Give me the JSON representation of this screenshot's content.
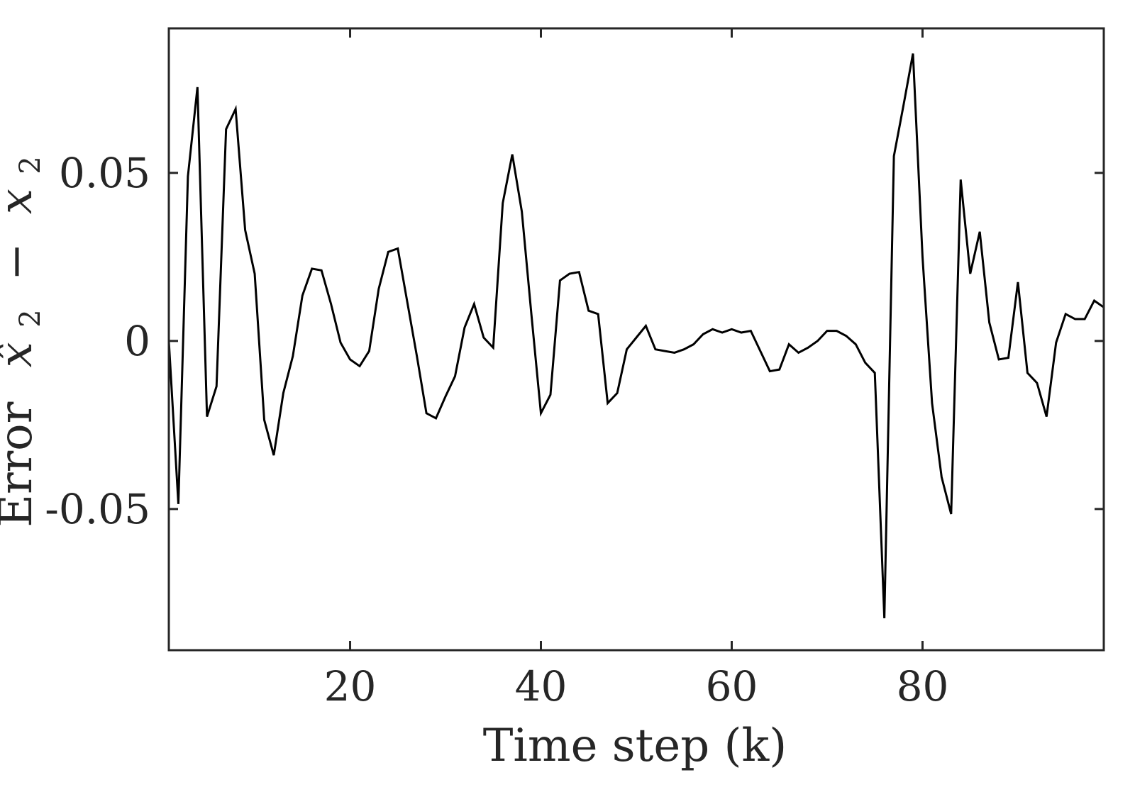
{
  "chart_data": {
    "type": "line",
    "xlabel": "Time step (k)",
    "ylabel": {
      "word": "Error",
      "math_a": "x̂",
      "sub_a": "2",
      "op": "−",
      "math_b": "x",
      "sub_b": "2"
    },
    "xlim": [
      1,
      99
    ],
    "ylim": [
      -0.092,
      0.093
    ],
    "xticks": [
      20,
      40,
      60,
      80
    ],
    "xtick_labels": [
      "20",
      "40",
      "60",
      "80"
    ],
    "yticks": [
      0.05,
      0,
      -0.05
    ],
    "ytick_labels": [
      "0.05",
      "0",
      "-0.05"
    ],
    "grid": false,
    "line_color": "#000000",
    "axis_color": "#262626",
    "series": [
      {
        "x": [
          1,
          2,
          3,
          4,
          5,
          6,
          7,
          8,
          9,
          10,
          11,
          12,
          13,
          14,
          15,
          16,
          17,
          18,
          19,
          20,
          21,
          22,
          23,
          24,
          25,
          26,
          27,
          28,
          29,
          30,
          31,
          32,
          33,
          34,
          35,
          36,
          37,
          38,
          39,
          40,
          41,
          42,
          43,
          44,
          45,
          46,
          47,
          48,
          49,
          50,
          51,
          52,
          53,
          54,
          55,
          56,
          57,
          58,
          59,
          60,
          61,
          62,
          63,
          64,
          65,
          66,
          67,
          68,
          69,
          70,
          71,
          72,
          73,
          74,
          75,
          76,
          77,
          78,
          79,
          80,
          81,
          82,
          83,
          84,
          85,
          86,
          87,
          88,
          89,
          90,
          91,
          92,
          93,
          94,
          95,
          96,
          97,
          98,
          99
        ],
        "y": [
          0,
          -0.0485,
          0.049,
          0.0755,
          -0.0225,
          -0.0135,
          0.063,
          0.069,
          0.033,
          0.02,
          -0.0235,
          -0.034,
          -0.0155,
          -0.0045,
          0.0135,
          0.0215,
          0.021,
          0.011,
          -0.0005,
          -0.0055,
          -0.0075,
          -0.003,
          0.0155,
          0.0265,
          0.0275,
          0.0115,
          -0.0045,
          -0.0215,
          -0.023,
          -0.0165,
          -0.0105,
          0.004,
          0.011,
          0.001,
          -0.002,
          0.041,
          0.0555,
          0.0385,
          0.008,
          -0.0215,
          -0.016,
          0.018,
          0.02,
          0.0205,
          0.009,
          0.008,
          -0.0185,
          -0.0155,
          -0.0025,
          0.001,
          0.0045,
          -0.0025,
          -0.003,
          -0.0035,
          -0.0025,
          -0.001,
          0.002,
          0.0035,
          0.0025,
          0.0035,
          0.0025,
          0.003,
          -0.003,
          -0.009,
          -0.0085,
          -0.001,
          -0.0035,
          -0.002,
          0,
          0.003,
          0.003,
          0.0015,
          -0.001,
          -0.0065,
          -0.0095,
          -0.0825,
          0.055,
          0.07,
          0.0855,
          0.025,
          -0.0185,
          -0.0405,
          -0.0515,
          0.048,
          0.02,
          0.0325,
          0.0055,
          -0.0055,
          -0.005,
          0.0175,
          -0.0095,
          -0.0125,
          -0.0225,
          -0.0005,
          0.008,
          0.0065,
          0.0065,
          0.012,
          0.01
        ]
      }
    ]
  }
}
